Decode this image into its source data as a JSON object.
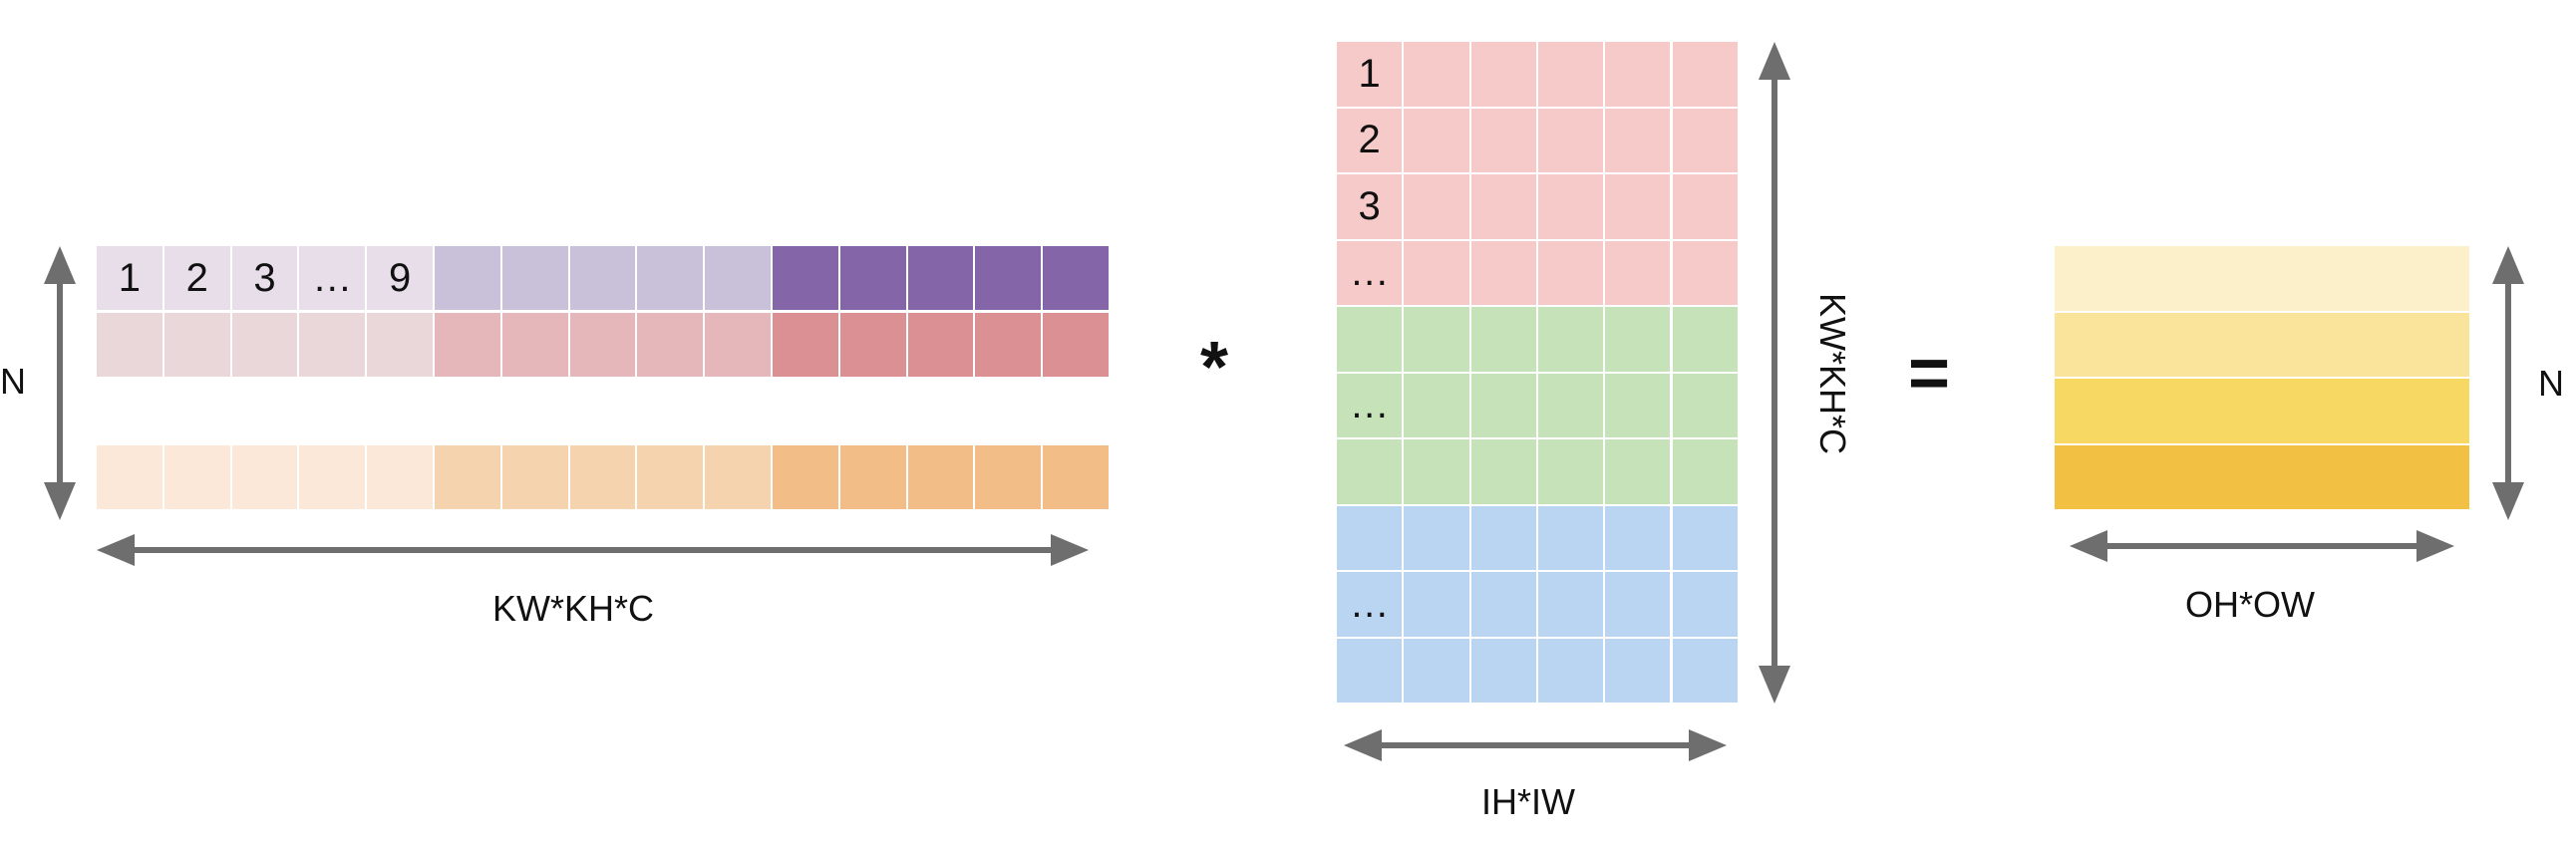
{
  "left_matrix": {
    "row1_labels": [
      "1",
      "2",
      "3",
      "…",
      "9"
    ],
    "row1_colors": [
      "#e8deea",
      "#c9c0d9",
      "#8466a8"
    ],
    "row2_colors": [
      "#ead7da",
      "#e6b7ba",
      "#db9193"
    ],
    "row3_colors": [
      "#fbe8d8",
      "#f5d3ae",
      "#f3bd88"
    ],
    "height_label": "N",
    "width_label": "KW*KH*C"
  },
  "operator_multiply": "*",
  "middle_matrix": {
    "row_labels": [
      "1",
      "2",
      "3",
      "…",
      "",
      "…",
      "",
      "",
      "…",
      ""
    ],
    "row_colors": [
      "#f6cac8",
      "#f6cac8",
      "#f6cac8",
      "#f6cac8",
      "#c5e2b8",
      "#c5e2b8",
      "#c5e2b8",
      "#bad5f2",
      "#bad5f2",
      "#bad5f2"
    ],
    "height_label": "KW*KH*C",
    "width_label": "IH*IW"
  },
  "operator_equals": "=",
  "right_matrix": {
    "row_colors": [
      "#fcf0cb",
      "#fae49b",
      "#f7d862",
      "#f2c143"
    ],
    "height_label": "N",
    "width_label": "OH*OW"
  },
  "arrow_color": "#6e6e6e"
}
